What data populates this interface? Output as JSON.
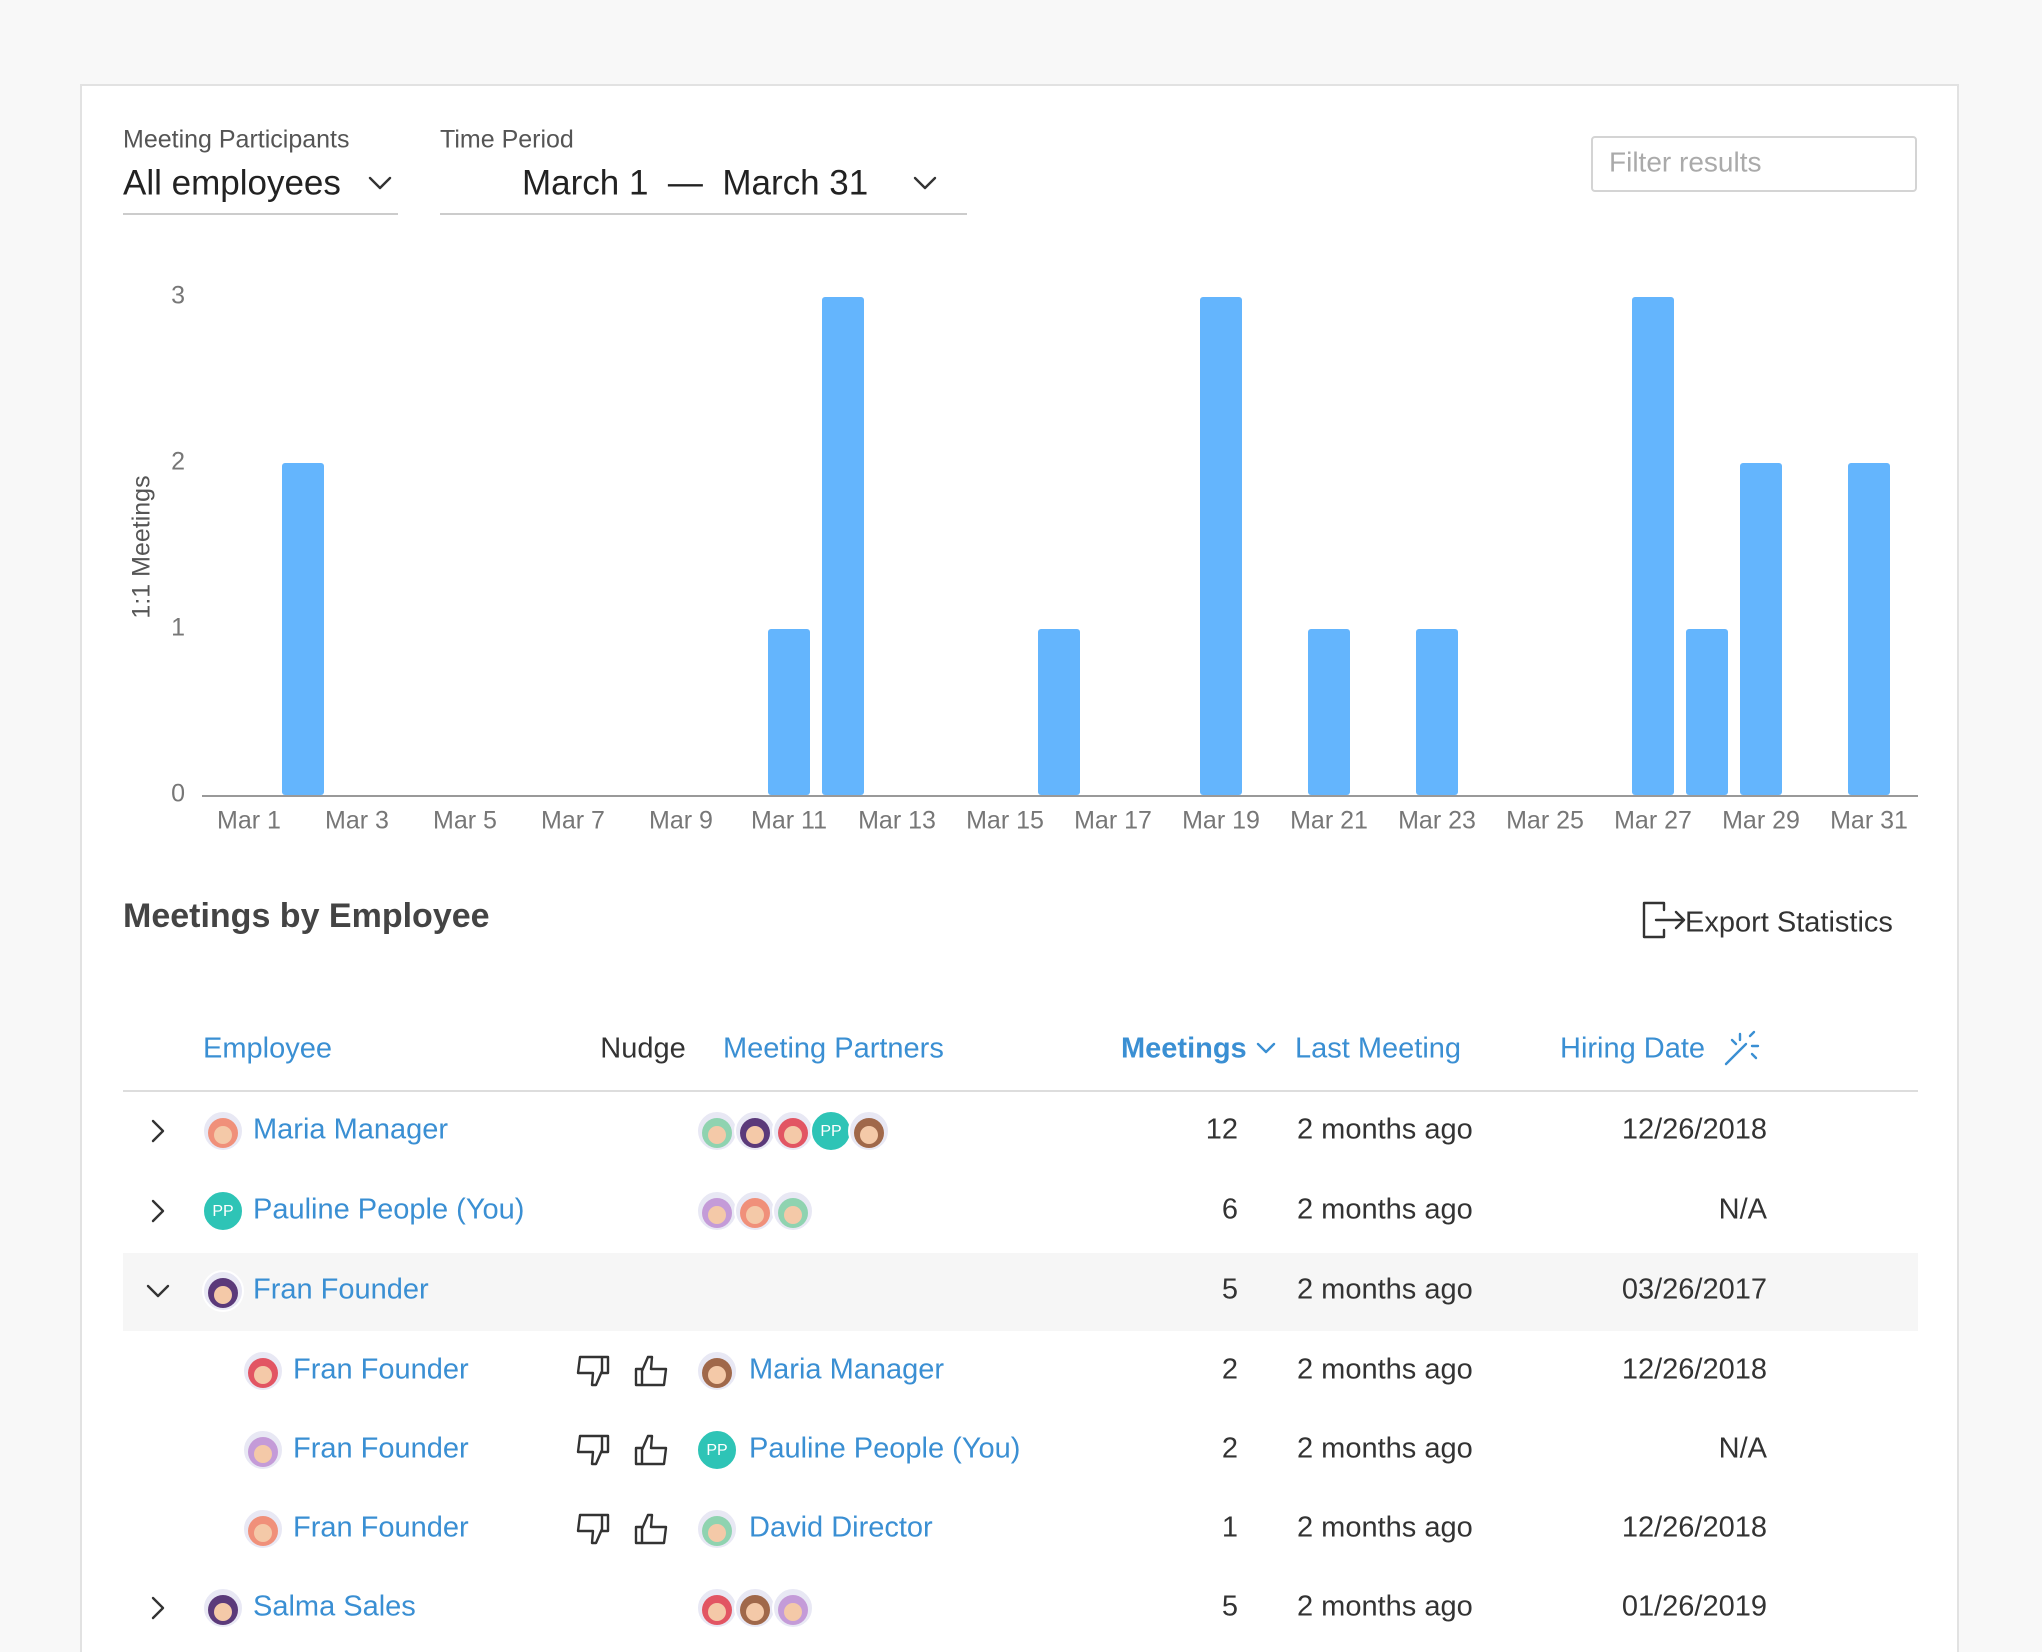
{
  "filters": {
    "participants_label": "Meeting Participants",
    "participants_value": "All employees",
    "period_label": "Time Period",
    "period_value": "March 1  —  March 31",
    "search_placeholder": "Filter results"
  },
  "chart_data": {
    "type": "bar",
    "ylabel": "1:1 Meetings",
    "categories": [
      "Mar 1",
      null,
      "Mar 3",
      null,
      "Mar 5",
      null,
      "Mar 7",
      null,
      "Mar 9",
      null,
      "Mar 11",
      null,
      "Mar 13",
      null,
      "Mar 15",
      null,
      "Mar 17",
      null,
      "Mar 19",
      null,
      "Mar 21",
      null,
      "Mar 23",
      null,
      "Mar 25",
      null,
      "Mar 27",
      null,
      "Mar 29",
      null,
      "Mar 31"
    ],
    "values": [
      0,
      2,
      0,
      0,
      0,
      0,
      0,
      0,
      0,
      0,
      1,
      3,
      0,
      0,
      0,
      1,
      0,
      0,
      3,
      0,
      1,
      0,
      1,
      0,
      0,
      0,
      3,
      1,
      2,
      0,
      2
    ],
    "color": "#64b5fd",
    "ylim": [
      0,
      3
    ],
    "yticks": [
      0,
      1,
      2,
      3
    ],
    "grid": false
  },
  "section": {
    "title": "Meetings by Employee",
    "export": "Export Statistics"
  },
  "table": {
    "columns": [
      "Employee",
      "Nudge",
      "Meeting Partners",
      "Meetings",
      "Last Meeting",
      "Hiring Date"
    ],
    "rows": [
      {
        "name": "Maria Manager",
        "partners": [
          null,
          null,
          null,
          "PP",
          null
        ],
        "meetings": 12,
        "last_meeting": "2 months ago",
        "hiring_date": "12/26/2018"
      },
      {
        "name": "Pauline People (You)",
        "initials": "PP",
        "partners": [
          null,
          null,
          null
        ],
        "meetings": 6,
        "last_meeting": "2 months ago",
        "hiring_date": "N/A"
      },
      {
        "name": "Fran Founder",
        "meetings": 5,
        "last_meeting": "2 months ago",
        "hiring_date": "03/26/2017",
        "children": [
          {
            "name": "Fran Founder",
            "partner": "Maria Manager",
            "meetings": 2,
            "last_meeting": "2 months ago",
            "hiring_date": "12/26/2018"
          },
          {
            "name": "Fran Founder",
            "partner": "Pauline People (You)",
            "partner_initials": "PP",
            "meetings": 2,
            "last_meeting": "2 months ago",
            "hiring_date": "N/A"
          },
          {
            "name": "Fran Founder",
            "partner": "David Director",
            "meetings": 1,
            "last_meeting": "2 months ago",
            "hiring_date": "12/26/2018"
          }
        ]
      },
      {
        "name": "Salma Sales",
        "partners": [
          null,
          null,
          null
        ],
        "meetings": 5,
        "last_meeting": "2 months ago",
        "hiring_date": "01/26/2019"
      }
    ]
  }
}
